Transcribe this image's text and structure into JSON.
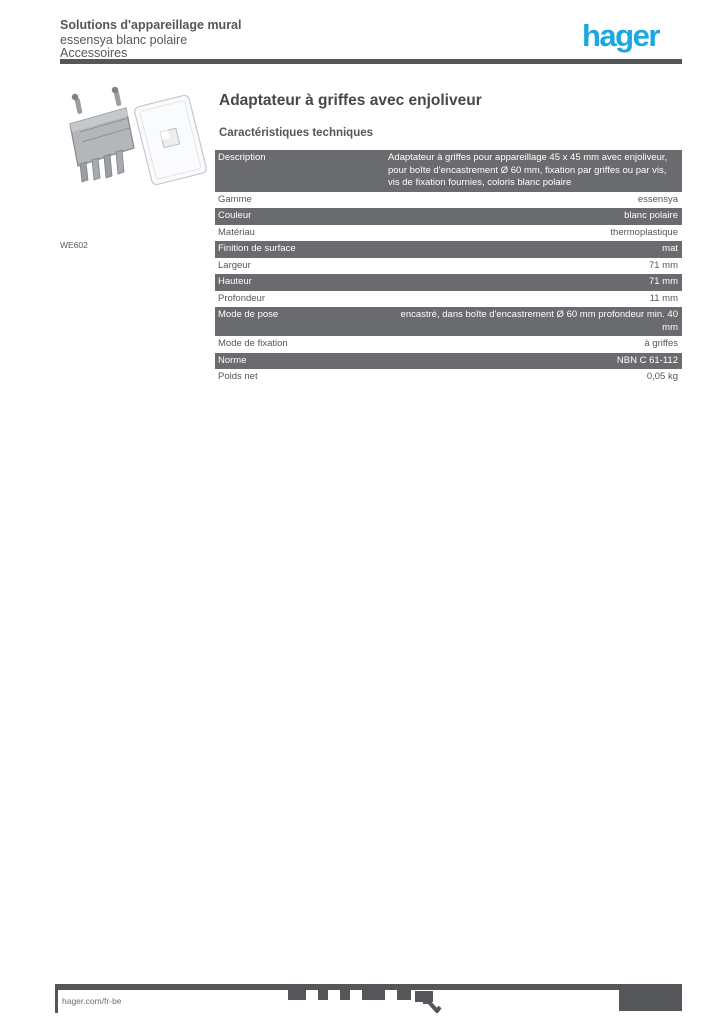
{
  "colors": {
    "brand_blue": "#19a7e0",
    "text_gray": "#55565a",
    "shaded_row": "#6a6b6e"
  },
  "header": {
    "category_line1": "Solutions d'appareillage mural",
    "category_line2": "essensya blanc polaire",
    "category_line3": "Accessoires",
    "logo_text": "hager"
  },
  "product": {
    "reference": "WE602",
    "title": "Adaptateur à griffes avec enjoliveur",
    "section_heading": "Caractéristiques techniques"
  },
  "table": {
    "rows": [
      {
        "label": "Description",
        "value": "Adaptateur à griffes pour appareillage 45 x 45 mm avec enjoliveur, pour boîte d'encastrement Ø 60 mm, fixation par griffes ou par vis, vis de fixation fournies, coloris blanc polaire",
        "shaded": true
      },
      {
        "label": "Gamme",
        "value": "essensya",
        "shaded": false
      },
      {
        "label": "Couleur",
        "value": "blanc polaire",
        "shaded": true
      },
      {
        "label": "Matériau",
        "value": "thermoplastique",
        "shaded": false
      },
      {
        "label": "Finition de surface",
        "value": "mat",
        "shaded": true
      },
      {
        "label": "Largeur",
        "value": "71 mm",
        "shaded": false
      },
      {
        "label": "Hauteur",
        "value": "71 mm",
        "shaded": true
      },
      {
        "label": "Profondeur",
        "value": "11 mm",
        "shaded": false
      },
      {
        "label": "Mode de pose",
        "value": "encastré, dans boîte d'encastrement Ø 60 mm profondeur min. 40 mm",
        "shaded": true
      },
      {
        "label": "Mode de fixation",
        "value": "à griffes",
        "shaded": false
      },
      {
        "label": "Norme",
        "value": "NBN C 61-112",
        "shaded": true
      },
      {
        "label": "Poids net",
        "value": "0,05 kg",
        "shaded": false
      }
    ]
  },
  "footer": {
    "website": "hager.com/fr-be",
    "icons": [
      "ce-mark-icon",
      "class2-icon",
      "keymark-icon",
      "cebec-icon",
      "vde-icon"
    ]
  }
}
